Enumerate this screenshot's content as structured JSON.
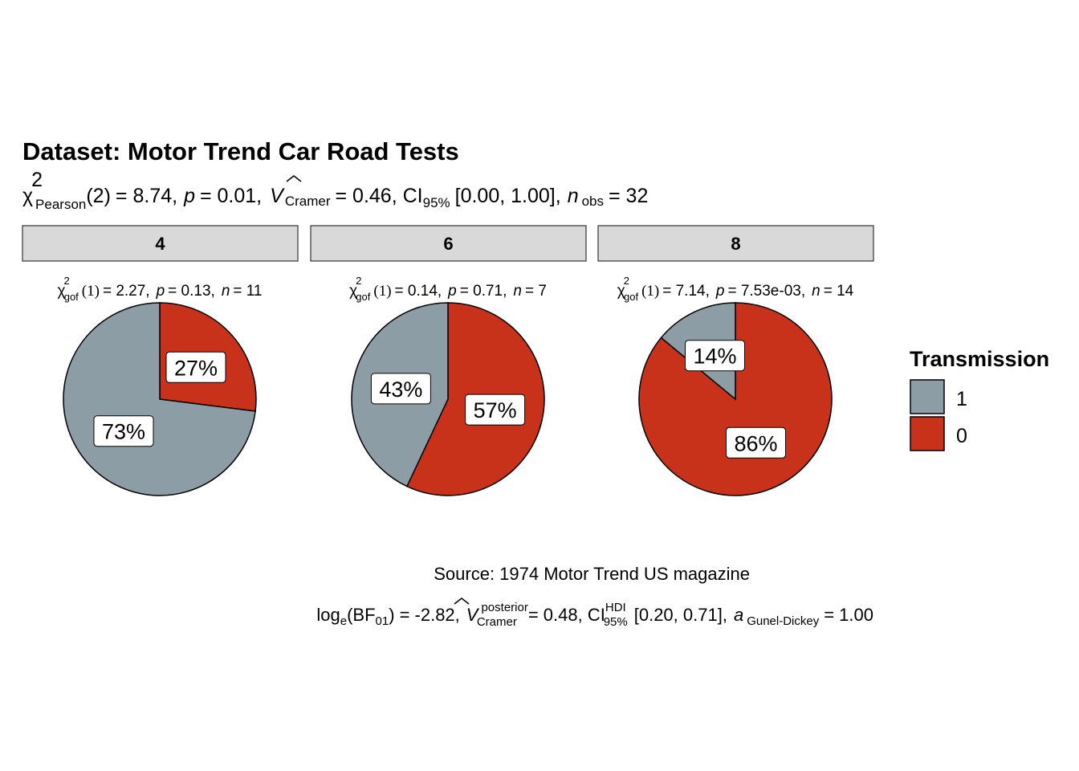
{
  "chart_data": {
    "type": "pie",
    "title": "Dataset: Motor Trend Car Road Tests",
    "subtitle": {
      "stat_symbol": "χ",
      "stat_sup": "2",
      "stat_sub": "Pearson",
      "df": "(2)",
      "stat_value": "= 8.74,",
      "p_label": "p",
      "p_value": "= 0.01,",
      "effect_symbol": "V",
      "effect_sub": "Cramer",
      "effect_value": "= 0.46, CI",
      "ci_sub": "95%",
      "ci_value": "[0.00, 1.00],",
      "n_label": "n",
      "n_sub": "obs",
      "n_value": "= 32"
    },
    "panels": [
      {
        "strip": "4",
        "stat": {
          "sym": "χ",
          "sup": "2",
          "sub": "gof",
          "df": "(1)",
          "val": "= 2.27,",
          "p": "p",
          "pval": "= 0.13,",
          "n": "n",
          "nval": "= 11"
        },
        "slices": [
          {
            "level": "0",
            "value": 27,
            "label": "27%"
          },
          {
            "level": "1",
            "value": 73,
            "label": "73%"
          }
        ]
      },
      {
        "strip": "6",
        "stat": {
          "sym": "χ",
          "sup": "2",
          "sub": "gof",
          "df": "(1)",
          "val": "= 0.14,",
          "p": "p",
          "pval": "= 0.71,",
          "n": "n",
          "nval": "= 7"
        },
        "slices": [
          {
            "level": "0",
            "value": 57,
            "label": "57%"
          },
          {
            "level": "1",
            "value": 43,
            "label": "43%"
          }
        ]
      },
      {
        "strip": "8",
        "stat": {
          "sym": "χ",
          "sup": "2",
          "sub": "gof",
          "df": "(1)",
          "val": "= 7.14,",
          "p": "p",
          "pval": "= 7.53e-03,",
          "n": "n",
          "nval": "= 14"
        },
        "slices": [
          {
            "level": "0",
            "value": 86,
            "label": "86%"
          },
          {
            "level": "1",
            "value": 14,
            "label": "14%"
          }
        ]
      }
    ],
    "legend": {
      "title": "Transmission",
      "position": "right",
      "items": [
        {
          "label": "1",
          "color": "#8C9DA6"
        },
        {
          "label": "0",
          "color": "#C8311A"
        }
      ]
    },
    "caption": {
      "line1": "Source: 1974 Motor Trend US magazine",
      "log": "log",
      "log_sub": "e",
      "bf_open": "(BF",
      "bf_sub": "01",
      "bf_close": ")",
      "bf_value": "= -2.82,",
      "v_sym": "V",
      "v_sup": "posterior",
      "v_sub": "Cramer",
      "v_value": "= 0.48, CI",
      "ci_sup": "HDI",
      "ci_sub": "95%",
      "ci_value": "[0.20, 0.71],",
      "a_sym": "a",
      "a_sub": "Gunel-Dickey",
      "a_value": "= 1.00"
    },
    "colors": {
      "level_1": "#8C9DA6",
      "level_0": "#C8311A",
      "strip_fill": "#D9D9D9"
    }
  }
}
